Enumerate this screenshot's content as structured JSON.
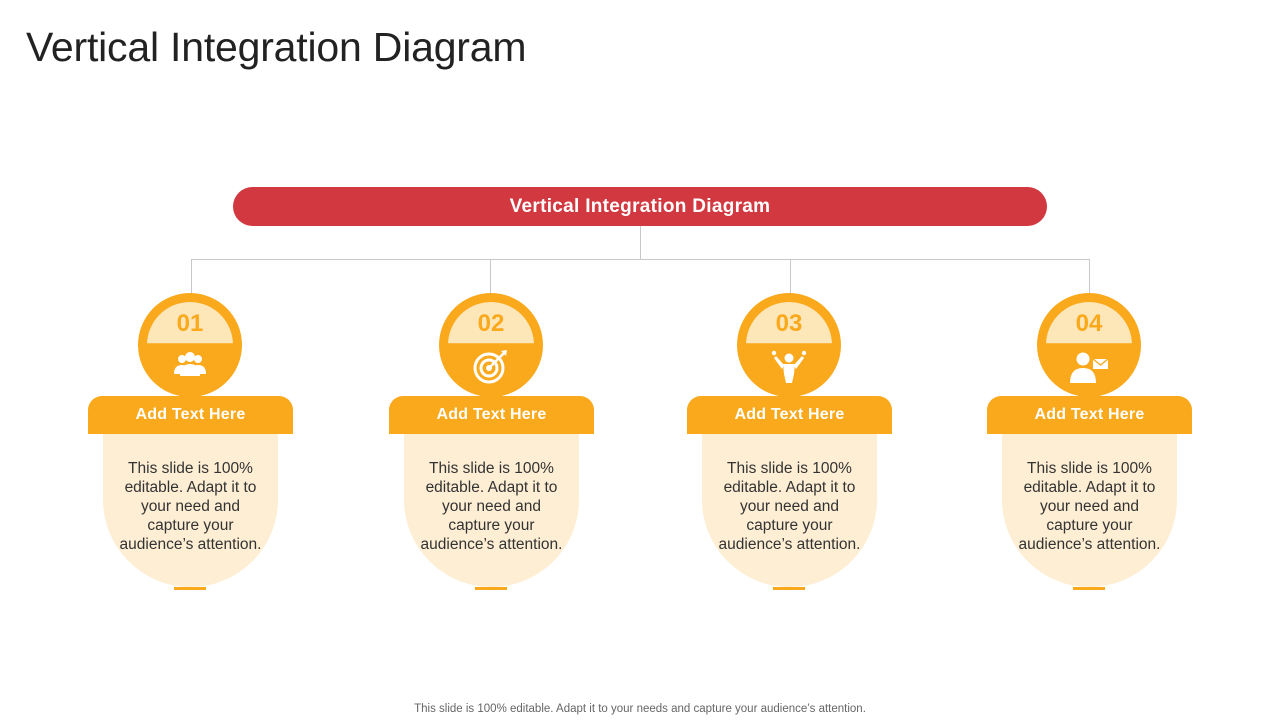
{
  "title": "Vertical Integration Diagram",
  "banner": "Vertical Integration Diagram",
  "colors": {
    "banner": "#d2383f",
    "accent": "#f9a91b",
    "cap": "#fde6b8",
    "card": "#fdeed4",
    "connector": "#c8c8c8"
  },
  "items": [
    {
      "number": "01",
      "icon": "users-group-icon",
      "label": "Add Text Here",
      "text": "This slide is 100% editable. Adapt it to your need and capture your audience’s attention."
    },
    {
      "number": "02",
      "icon": "target-arrow-icon",
      "label": "Add Text Here",
      "text": "This slide is 100% editable. Adapt it to your need and capture your audience’s attention."
    },
    {
      "number": "03",
      "icon": "person-celebrating-money-icon",
      "label": "Add Text Here",
      "text": "This slide is 100% editable. Adapt it to your need and capture your audience’s attention."
    },
    {
      "number": "04",
      "icon": "user-mail-icon",
      "label": "Add Text Here",
      "text": "This slide is 100% editable. Adapt it to your need and capture your audience’s attention."
    }
  ],
  "footer": "This slide is 100% editable. Adapt it to your needs and capture your audience’s attention."
}
